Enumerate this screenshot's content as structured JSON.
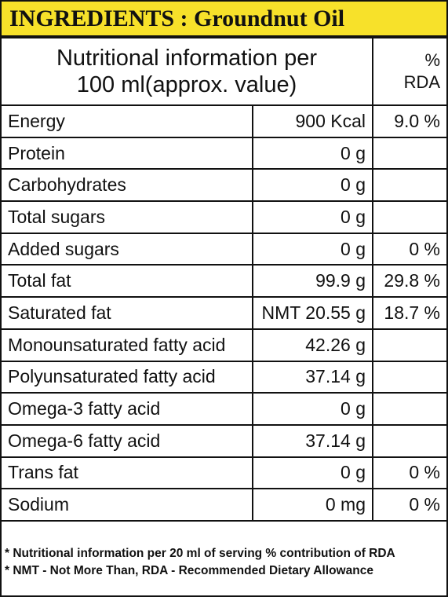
{
  "header": {
    "title": "INGREDIENTS : Groundnut Oil"
  },
  "table": {
    "head": {
      "label_line1": "Nutritional information per",
      "label_line2": "100 ml(approx. value)",
      "rda_line1": "%",
      "rda_line2": "RDA"
    },
    "rows": [
      {
        "name": "Energy",
        "amount": "900 Kcal",
        "rda": "9.0 %"
      },
      {
        "name": "Protein",
        "amount": "0 g"
      },
      {
        "name": "Carbohydrates",
        "amount": "0 g"
      },
      {
        "name": "Total sugars",
        "amount": "0 g"
      },
      {
        "name": "Added sugars",
        "amount": "0 g",
        "rda": "0 %"
      },
      {
        "name": "Total fat",
        "amount": "99.9 g",
        "rda": "29.8 %"
      },
      {
        "name": "Saturated fat",
        "amount": "NMT 20.55 g",
        "rda": "18.7 %"
      },
      {
        "name": "Monounsaturated fatty acid",
        "amount": "42.26 g"
      },
      {
        "name": "Polyunsaturated fatty acid",
        "amount": "37.14 g"
      },
      {
        "name": "Omega-3 fatty acid",
        "amount": "0 g"
      },
      {
        "name": "Omega-6 fatty acid",
        "amount": "37.14 g"
      },
      {
        "name": "Trans fat",
        "amount": "0 g",
        "rda": "0 %"
      },
      {
        "name": "Sodium",
        "amount": "0 mg",
        "rda": "0 %"
      }
    ]
  },
  "notes": [
    "* Nutritional information per 20 ml of serving % contribution of RDA",
    "* NMT - Not More Than,   RDA - Recommended Dietary Allowance"
  ]
}
